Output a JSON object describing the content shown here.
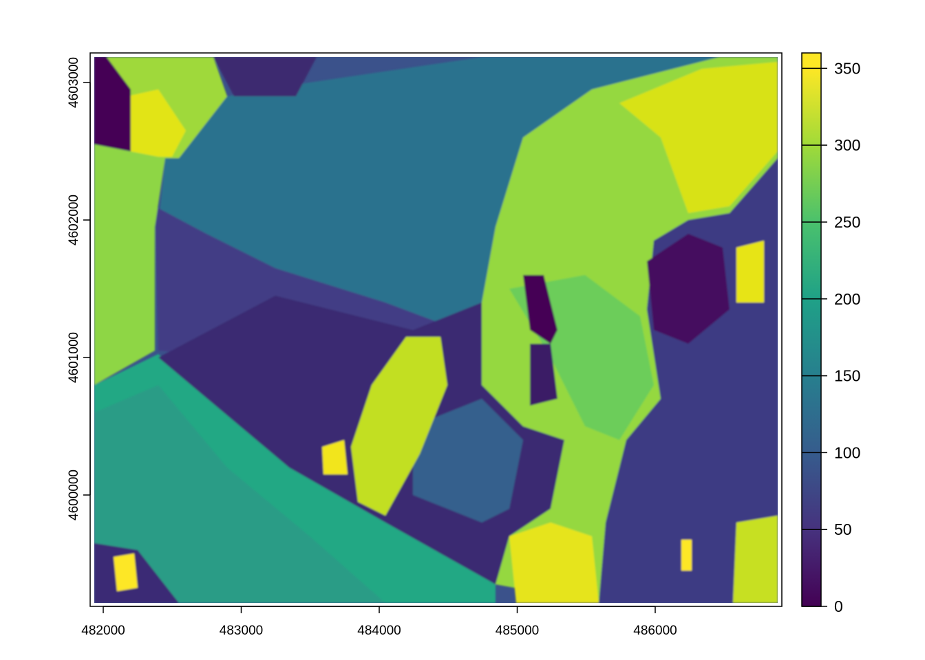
{
  "chart_data": {
    "type": "heatmap",
    "title": "",
    "xlabel": "",
    "ylabel": "",
    "x_ticks": [
      482000,
      483000,
      484000,
      485000,
      486000
    ],
    "y_ticks": [
      4600000,
      4601000,
      4602000,
      4603000
    ],
    "x_tick_labels": [
      "482000",
      "483000",
      "484000",
      "485000",
      "486000"
    ],
    "y_tick_labels": [
      "4600000",
      "4601000",
      "4602000",
      "4603000"
    ],
    "xlim": [
      481900,
      486930
    ],
    "ylim": [
      4599220,
      4603220
    ],
    "colorbar": {
      "range": [
        0,
        360
      ],
      "ticks": [
        0,
        50,
        100,
        150,
        200,
        250,
        300,
        350
      ],
      "tick_labels": [
        "0",
        "50",
        "100",
        "150",
        "200",
        "250",
        "300",
        "350"
      ],
      "colormap": [
        "#440154",
        "#46327e",
        "#365c8d",
        "#277f8e",
        "#1fa187",
        "#4ac16d",
        "#a0da39",
        "#fde725"
      ],
      "placement": "right"
    }
  }
}
